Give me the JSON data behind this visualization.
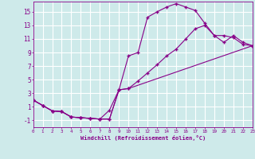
{
  "xlabel": "Windchill (Refroidissement éolien,°C)",
  "bg_color": "#ceeaea",
  "grid_color": "#ffffff",
  "line_color": "#880088",
  "xlim": [
    0,
    23
  ],
  "ylim": [
    -2,
    16.5
  ],
  "xticks": [
    0,
    1,
    2,
    3,
    4,
    5,
    6,
    7,
    8,
    9,
    10,
    11,
    12,
    13,
    14,
    15,
    16,
    17,
    18,
    19,
    20,
    21,
    22,
    23
  ],
  "yticks": [
    -1,
    1,
    3,
    5,
    7,
    9,
    11,
    13,
    15
  ],
  "curve1_x": [
    0,
    1,
    2,
    3,
    4,
    5,
    6,
    7,
    8,
    9,
    10,
    11,
    12,
    13,
    14,
    15,
    16,
    17,
    18,
    19,
    20,
    21,
    22,
    23
  ],
  "curve1_y": [
    2.0,
    1.2,
    0.4,
    0.3,
    -0.5,
    -0.6,
    -0.7,
    -0.8,
    -0.8,
    3.5,
    8.5,
    9.0,
    14.2,
    15.0,
    15.7,
    16.2,
    15.7,
    15.2,
    13.3,
    11.5,
    11.5,
    11.2,
    10.2,
    10.0
  ],
  "curve2_x": [
    0,
    1,
    2,
    3,
    4,
    5,
    6,
    7,
    8,
    9,
    10,
    11,
    12,
    13,
    14,
    15,
    16,
    17,
    18,
    19,
    20,
    21,
    22,
    23
  ],
  "curve2_y": [
    2.0,
    1.2,
    0.4,
    0.3,
    -0.5,
    -0.6,
    -0.7,
    -0.8,
    -0.8,
    3.5,
    3.7,
    4.8,
    6.0,
    7.2,
    8.5,
    9.5,
    11.0,
    12.5,
    13.0,
    11.5,
    10.5,
    11.5,
    10.5,
    10.0
  ],
  "curve3_x": [
    0,
    1,
    2,
    3,
    4,
    5,
    6,
    7,
    8,
    9,
    10,
    23
  ],
  "curve3_y": [
    2.0,
    1.2,
    0.4,
    0.3,
    -0.5,
    -0.6,
    -0.7,
    -0.8,
    0.5,
    3.5,
    3.7,
    10.0
  ]
}
